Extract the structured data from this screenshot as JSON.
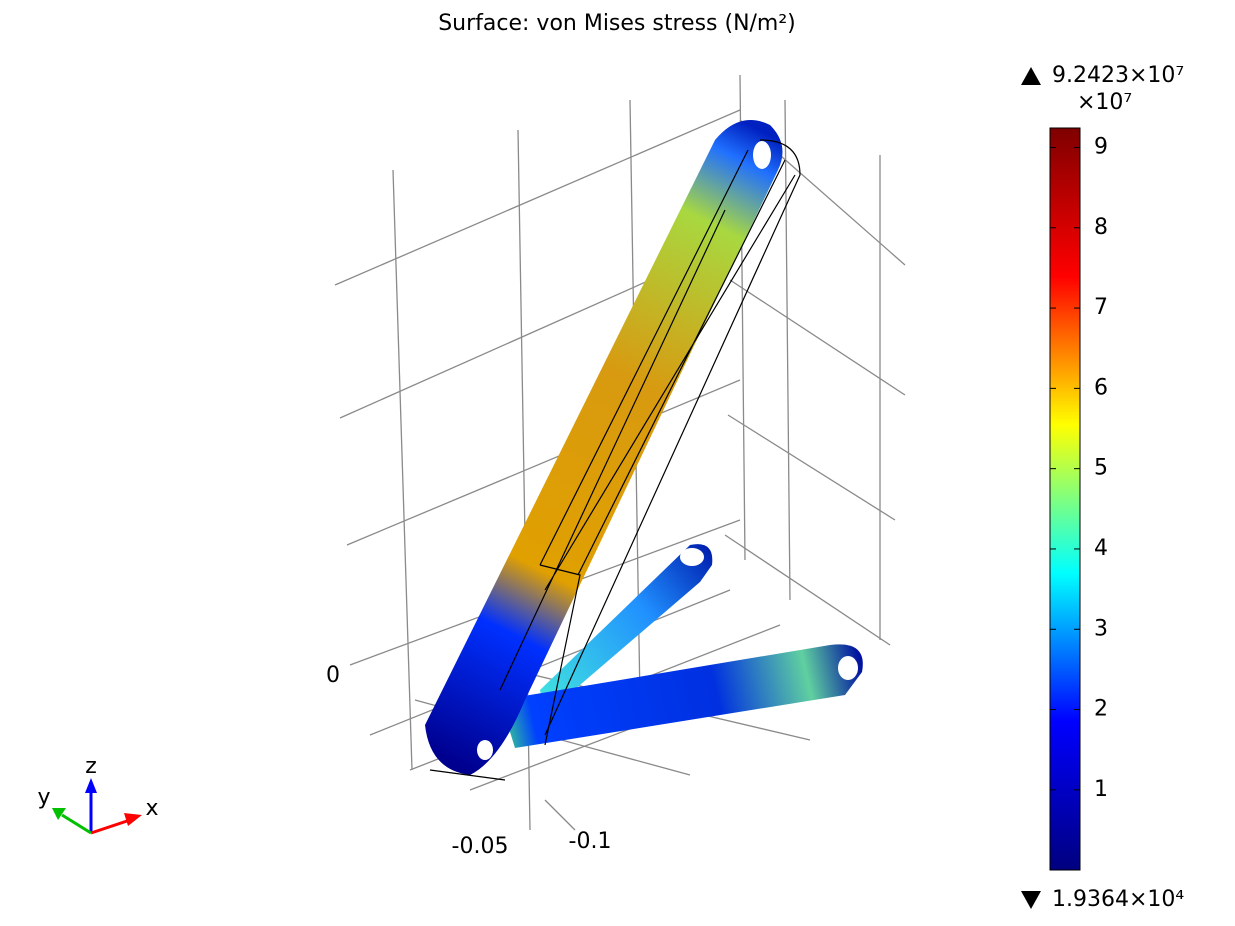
{
  "chart_data": {
    "type": "surface",
    "title": "Surface: von Mises stress (N/m²)",
    "colorbar": {
      "range": {
        "values": [
          19364,
          92423000
        ],
        "value_labels": [
          "1.9364×10⁴",
          "9.2423×10⁷"
        ]
      },
      "multiplier": "×10⁷",
      "ticks": [
        {
          "value": 10000000,
          "label": "1"
        },
        {
          "value": 20000000,
          "label": "2"
        },
        {
          "value": 30000000,
          "label": "3"
        },
        {
          "value": 40000000,
          "label": "4"
        },
        {
          "value": 50000000,
          "label": "5"
        },
        {
          "value": 60000000,
          "label": "6"
        },
        {
          "value": 70000000,
          "label": "7"
        },
        {
          "value": 80000000,
          "label": "8"
        },
        {
          "value": 90000000,
          "label": "9"
        }
      ],
      "colormap": [
        "#00007f",
        "#0000ff",
        "#00ffff",
        "#ffff00",
        "#ff0000",
        "#7f0000"
      ]
    },
    "axis_tick_labels": [
      "0",
      "-0.05",
      "-0.1"
    ],
    "triad": [
      "x",
      "y",
      "z"
    ]
  }
}
